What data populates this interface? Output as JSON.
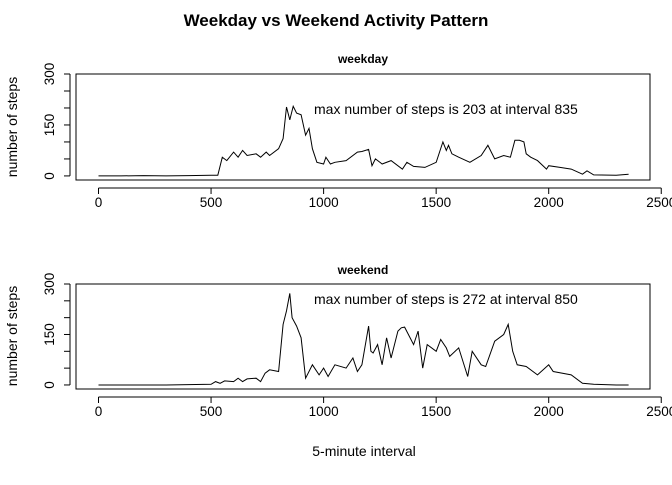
{
  "chart_data": {
    "type": "line",
    "title": "Weekday vs Weekend Activity Pattern",
    "xlabel": "5-minute interval",
    "panels": [
      {
        "title": "weekday",
        "ylabel": "number of steps",
        "annotation": "max number of steps is 203 at interval 835",
        "xlim": [
          -100,
          2450
        ],
        "ylim": [
          -12,
          300
        ],
        "xticks": [
          0,
          500,
          1000,
          1500,
          2000,
          2500
        ],
        "xtick_labels": [
          "0",
          "500",
          "1000",
          "1500",
          "2000",
          "2500"
        ],
        "yticks": [
          0,
          50,
          100,
          150,
          200,
          250,
          300
        ],
        "ytick_labels": [
          "0",
          "",
          "",
          "150",
          "",
          "",
          "300"
        ],
        "x": [
          0,
          100,
          200,
          300,
          400,
          500,
          530,
          550,
          570,
          600,
          620,
          640,
          660,
          700,
          720,
          745,
          760,
          800,
          820,
          835,
          850,
          865,
          880,
          900,
          920,
          935,
          950,
          970,
          1000,
          1010,
          1030,
          1050,
          1100,
          1150,
          1170,
          1200,
          1215,
          1230,
          1260,
          1300,
          1350,
          1370,
          1400,
          1450,
          1500,
          1530,
          1545,
          1555,
          1570,
          1600,
          1650,
          1700,
          1730,
          1745,
          1760,
          1800,
          1830,
          1850,
          1870,
          1890,
          1900,
          1920,
          1950,
          1990,
          2000,
          2050,
          2100,
          2150,
          2170,
          2200,
          2300,
          2355
        ],
        "y": [
          0,
          0,
          1,
          0,
          1,
          2,
          2,
          55,
          45,
          70,
          55,
          75,
          60,
          65,
          55,
          70,
          60,
          80,
          110,
          203,
          165,
          205,
          185,
          180,
          120,
          140,
          80,
          40,
          35,
          55,
          35,
          40,
          45,
          70,
          72,
          78,
          30,
          50,
          35,
          45,
          20,
          40,
          28,
          25,
          40,
          100,
          75,
          90,
          65,
          55,
          40,
          60,
          90,
          70,
          50,
          60,
          55,
          105,
          105,
          100,
          65,
          55,
          45,
          20,
          30,
          25,
          20,
          5,
          15,
          3,
          2,
          5
        ]
      },
      {
        "title": "weekend",
        "ylabel": "number of steps",
        "annotation": "max number of steps is 272 at interval 850",
        "xlim": [
          -100,
          2450
        ],
        "ylim": [
          -12,
          300
        ],
        "xticks": [
          0,
          500,
          1000,
          1500,
          2000,
          2500
        ],
        "xtick_labels": [
          "0",
          "500",
          "1000",
          "1500",
          "2000",
          "2500"
        ],
        "yticks": [
          0,
          50,
          100,
          150,
          200,
          250,
          300
        ],
        "ytick_labels": [
          "0",
          "",
          "",
          "150",
          "",
          "",
          "300"
        ],
        "x": [
          0,
          100,
          200,
          300,
          400,
          500,
          520,
          540,
          560,
          600,
          620,
          640,
          660,
          700,
          720,
          740,
          760,
          800,
          820,
          835,
          850,
          860,
          880,
          900,
          920,
          950,
          980,
          1000,
          1020,
          1050,
          1100,
          1130,
          1150,
          1170,
          1200,
          1210,
          1220,
          1240,
          1260,
          1280,
          1300,
          1330,
          1345,
          1360,
          1400,
          1420,
          1440,
          1460,
          1500,
          1520,
          1545,
          1560,
          1600,
          1640,
          1660,
          1700,
          1720,
          1760,
          1800,
          1820,
          1840,
          1860,
          1900,
          1950,
          2000,
          2020,
          2100,
          2150,
          2200,
          2300,
          2355
        ],
        "y": [
          0,
          0,
          0,
          0,
          1,
          2,
          10,
          5,
          12,
          10,
          20,
          10,
          18,
          20,
          10,
          35,
          45,
          40,
          180,
          220,
          272,
          200,
          175,
          140,
          20,
          60,
          30,
          50,
          25,
          60,
          50,
          80,
          40,
          60,
          175,
          100,
          95,
          120,
          60,
          140,
          80,
          160,
          170,
          172,
          120,
          160,
          50,
          120,
          100,
          135,
          110,
          85,
          110,
          25,
          100,
          60,
          55,
          130,
          150,
          180,
          100,
          60,
          55,
          30,
          60,
          40,
          30,
          5,
          2,
          0,
          0
        ]
      }
    ]
  }
}
